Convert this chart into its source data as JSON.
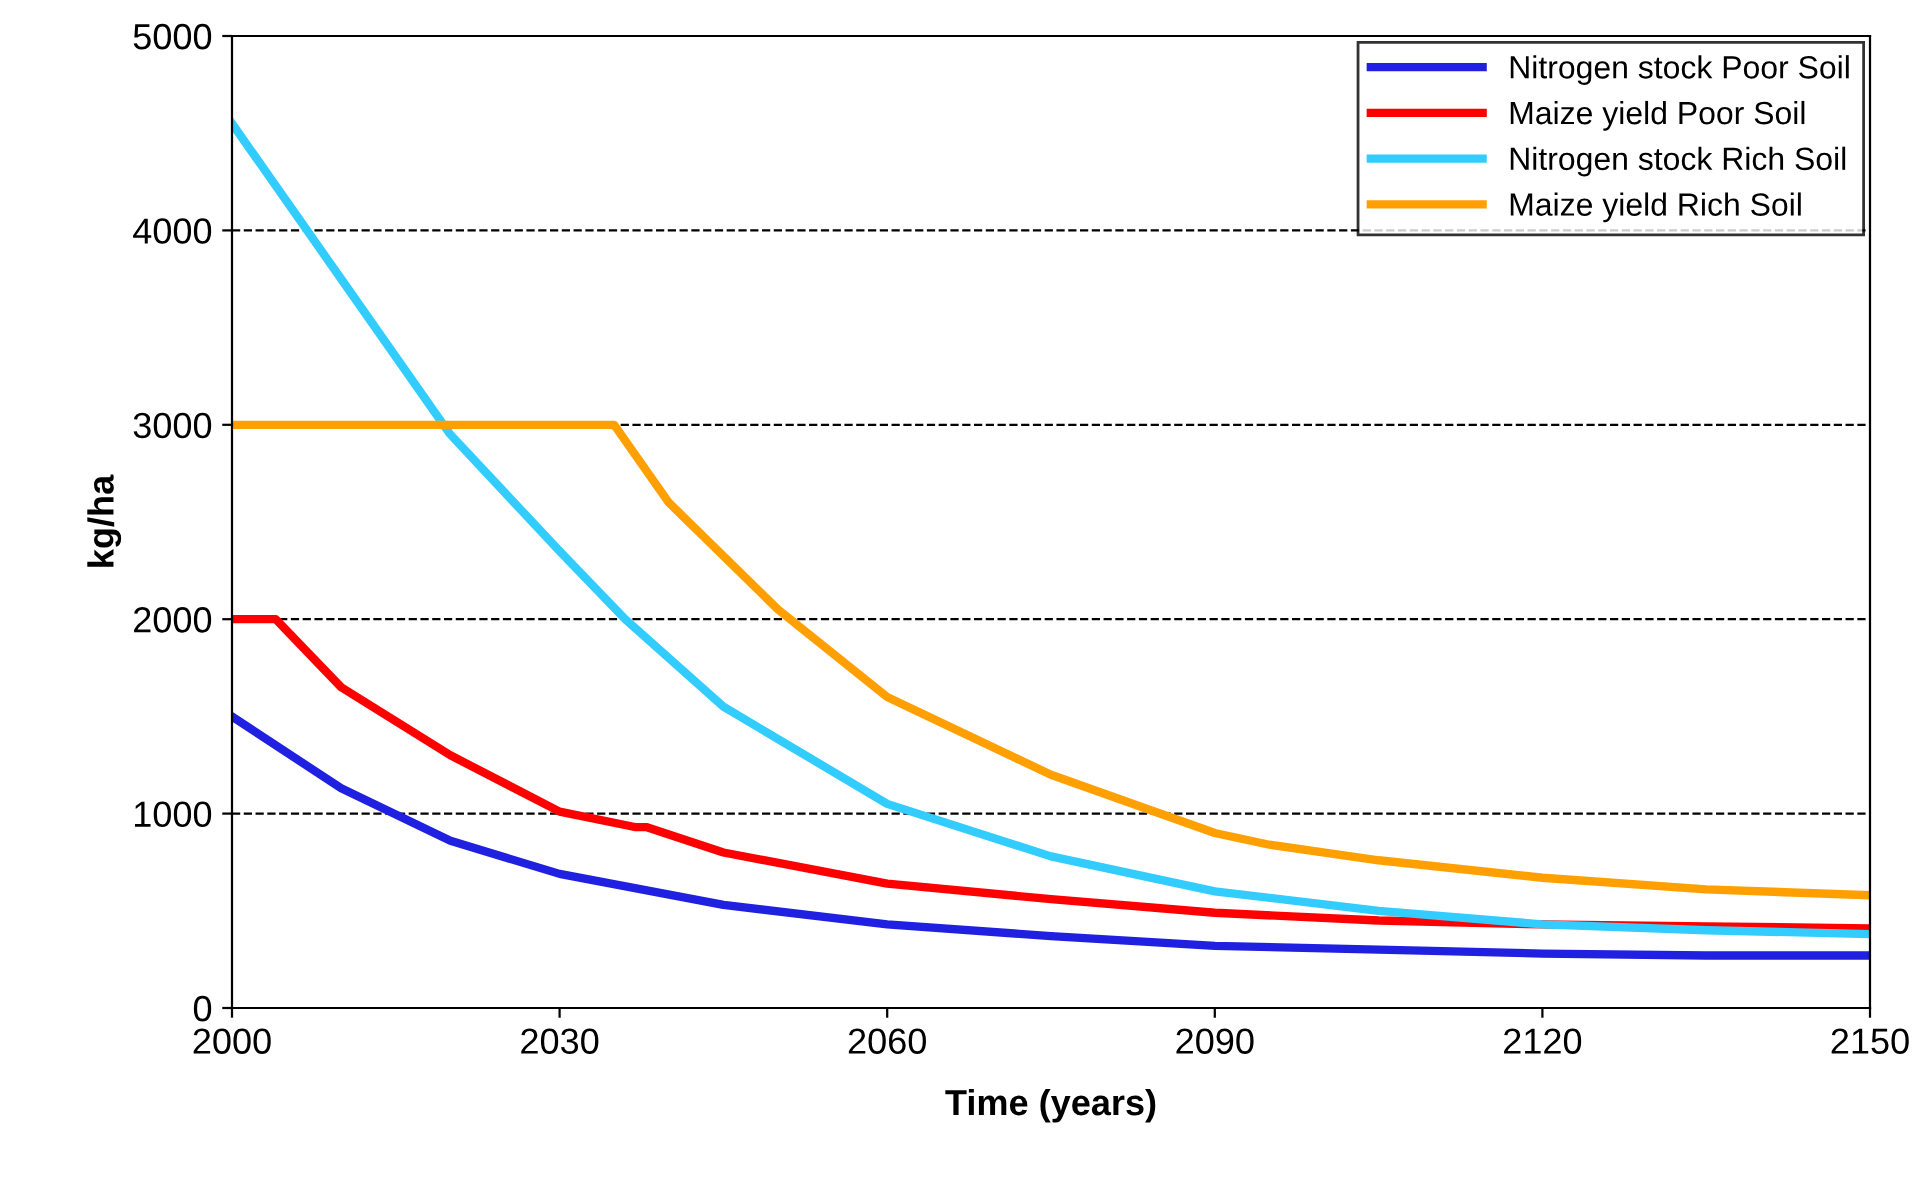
{
  "chart_data": {
    "type": "line",
    "xlabel": "Time (years)",
    "ylabel": "kg/ha",
    "xlim": [
      2000,
      2150
    ],
    "xticks": [
      2000,
      2030,
      2060,
      2090,
      2120,
      2150
    ],
    "ylim": [
      0,
      5000
    ],
    "yticks": [
      0,
      1000,
      2000,
      3000,
      4000,
      5000
    ],
    "grid": "y",
    "legend": "top right",
    "line_style": "solid",
    "series": [
      {
        "name": "Nitrogen stock Poor Soil",
        "color": "#2020e0",
        "x": [
          2000,
          2010,
          2020,
          2030,
          2045,
          2060,
          2075,
          2090,
          2105,
          2120,
          2135,
          2150
        ],
        "values": [
          1500,
          1130,
          860,
          690,
          530,
          430,
          370,
          320,
          300,
          280,
          270,
          270
        ]
      },
      {
        "name": "Maize yield Poor Soil",
        "color": "#ff0000",
        "x": [
          2000,
          2004,
          2010,
          2020,
          2030,
          2037,
          2038,
          2045,
          2060,
          2075,
          2090,
          2105,
          2120,
          2135,
          2150
        ],
        "values": [
          2000,
          2000,
          1650,
          1300,
          1010,
          930,
          930,
          800,
          640,
          560,
          490,
          450,
          430,
          420,
          410
        ]
      },
      {
        "name": "Nitrogen stock Rich Soil",
        "color": "#33ccff",
        "x": [
          2000,
          2010,
          2020,
          2030,
          2036,
          2045,
          2060,
          2075,
          2090,
          2105,
          2120,
          2135,
          2150
        ],
        "values": [
          4550,
          3750,
          2950,
          2350,
          2000,
          1550,
          1050,
          780,
          600,
          500,
          430,
          400,
          380
        ]
      },
      {
        "name": "Maize yield Rich Soil",
        "color": "#ffa000",
        "x": [
          2000,
          2035,
          2040,
          2050,
          2060,
          2075,
          2090,
          2095,
          2105,
          2120,
          2135,
          2150
        ],
        "values": [
          3000,
          3000,
          2600,
          2050,
          1600,
          1200,
          900,
          840,
          760,
          670,
          610,
          580
        ]
      }
    ]
  }
}
